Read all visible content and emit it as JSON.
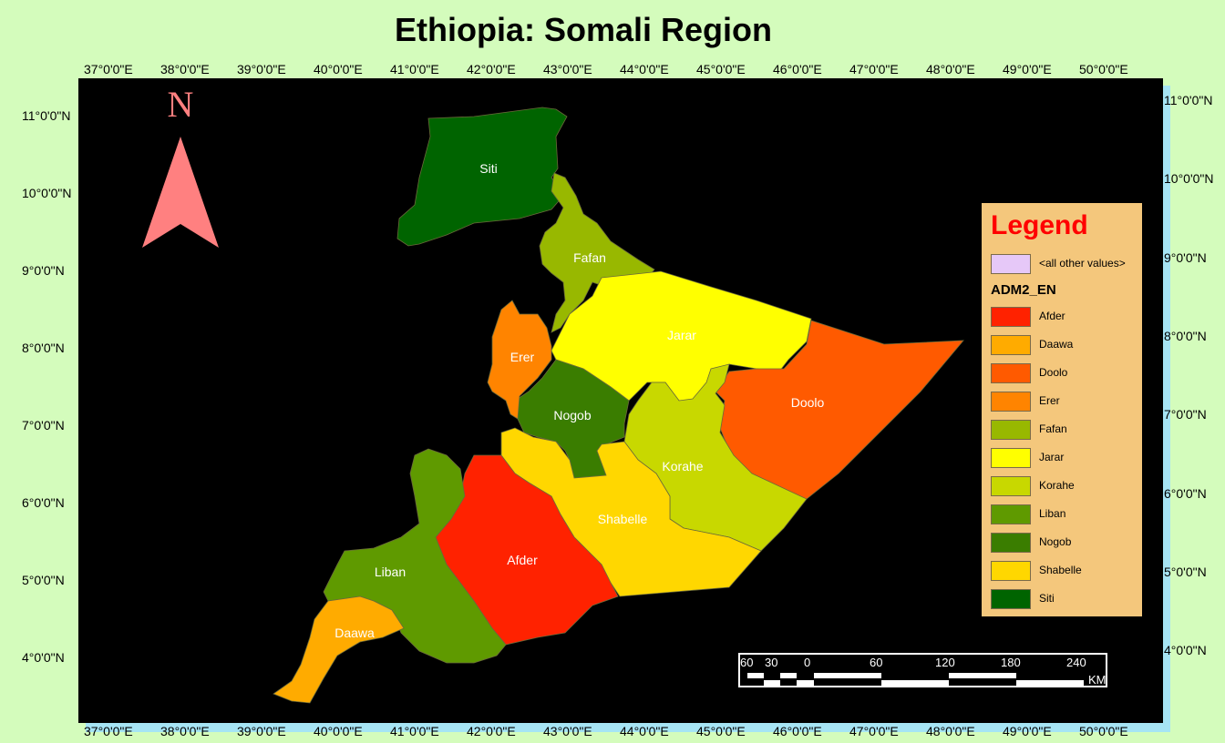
{
  "title": "Ethiopia: Somali Region",
  "north_arrow": {
    "label": "N",
    "color": "#ff8080"
  },
  "graticule": {
    "longitudes": [
      "37°0'0\"E",
      "38°0'0\"E",
      "39°0'0\"E",
      "40°0'0\"E",
      "41°0'0\"E",
      "42°0'0\"E",
      "43°0'0\"E",
      "44°0'0\"E",
      "45°0'0\"E",
      "46°0'0\"E",
      "47°0'0\"E",
      "48°0'0\"E",
      "49°0'0\"E",
      "50°0'0\"E"
    ],
    "latitudes_left": [
      "11°0'0\"N",
      "10°0'0\"N",
      "9°0'0\"N",
      "8°0'0\"N",
      "7°0'0\"N",
      "6°0'0\"N",
      "5°0'0\"N",
      "4°0'0\"N"
    ],
    "latitudes_right": [
      "11°0'0\"N",
      "10°0'0\"N",
      "9°0'0\"N",
      "8°0'0\"N",
      "7°0'0\"N",
      "6°0'0\"N",
      "5°0'0\"N",
      "4°0'0\"N"
    ]
  },
  "regions": [
    {
      "name": "Siti",
      "color": "#006400"
    },
    {
      "name": "Fafan",
      "color": "#98b800"
    },
    {
      "name": "Jarar",
      "color": "#ffff00"
    },
    {
      "name": "Doolo",
      "color": "#ff5a00"
    },
    {
      "name": "Korahe",
      "color": "#c8d800"
    },
    {
      "name": "Nogob",
      "color": "#3a7d00"
    },
    {
      "name": "Erer",
      "color": "#ff8400"
    },
    {
      "name": "Shabelle",
      "color": "#ffd700"
    },
    {
      "name": "Afder",
      "color": "#ff2200"
    },
    {
      "name": "Liban",
      "color": "#5f9a00"
    },
    {
      "name": "Daawa",
      "color": "#ffab00"
    }
  ],
  "legend": {
    "title": "Legend",
    "other": {
      "label": "<all other values>",
      "color": "#e6c8f8"
    },
    "field": "ADM2_EN",
    "items": [
      {
        "label": "Afder",
        "color": "#ff2200"
      },
      {
        "label": "Daawa",
        "color": "#ffab00"
      },
      {
        "label": "Doolo",
        "color": "#ff5a00"
      },
      {
        "label": "Erer",
        "color": "#ff8400"
      },
      {
        "label": "Fafan",
        "color": "#98b800"
      },
      {
        "label": "Jarar",
        "color": "#ffff00"
      },
      {
        "label": "Korahe",
        "color": "#c8d800"
      },
      {
        "label": "Liban",
        "color": "#5f9a00"
      },
      {
        "label": "Nogob",
        "color": "#3a7d00"
      },
      {
        "label": "Shabelle",
        "color": "#ffd700"
      },
      {
        "label": "Siti",
        "color": "#006400"
      }
    ]
  },
  "scale_bar": {
    "ticks": [
      "60",
      "30",
      "0",
      "60",
      "120",
      "180",
      "240"
    ],
    "unit": "KM"
  }
}
